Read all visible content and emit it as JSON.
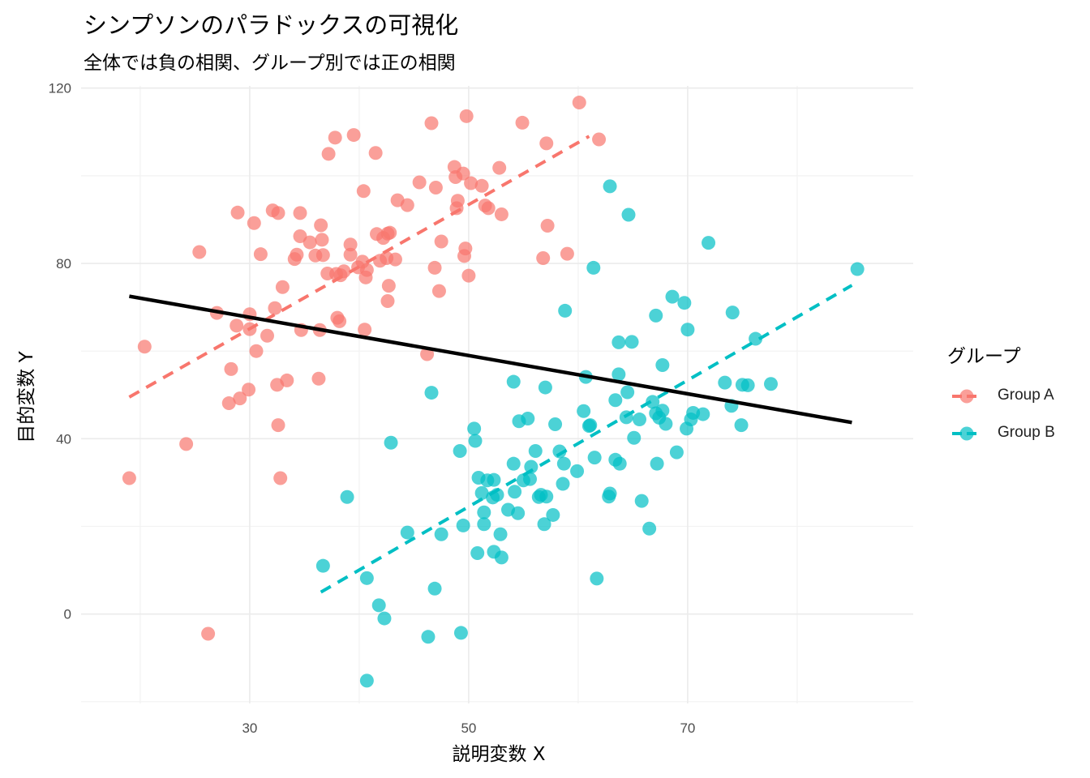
{
  "title": "シンプソンのパラドックスの可視化",
  "subtitle": "全体では負の相関、グループ別では正の相関",
  "chart_data": {
    "type": "scatter",
    "xlabel": "説明変数 X",
    "ylabel": "目的変数 Y",
    "xlim": [
      14.6,
      90.6
    ],
    "ylim": [
      -20.4,
      120.5
    ],
    "xticks": [
      30,
      50,
      70
    ],
    "yticks": [
      0,
      40,
      80,
      120
    ],
    "grid": true,
    "legend": {
      "title": "グループ",
      "position": "right"
    },
    "series": [
      {
        "name": "Group A",
        "color": "#F8766D",
        "trend": {
          "x": [
            19.0,
            61.0
          ],
          "y": [
            49.5,
            109.0
          ]
        },
        "points": [
          [
            19.0,
            31.0
          ],
          [
            20.4,
            61.0
          ],
          [
            24.2,
            38.8
          ],
          [
            25.4,
            82.6
          ],
          [
            26.2,
            -4.5
          ],
          [
            27.0,
            68.7
          ],
          [
            28.1,
            48.1
          ],
          [
            28.3,
            55.9
          ],
          [
            28.8,
            65.8
          ],
          [
            28.9,
            91.6
          ],
          [
            29.1,
            49.2
          ],
          [
            29.9,
            51.2
          ],
          [
            30.0,
            68.4
          ],
          [
            30.0,
            65.0
          ],
          [
            30.4,
            89.2
          ],
          [
            30.6,
            60.0
          ],
          [
            31.0,
            82.1
          ],
          [
            31.6,
            63.5
          ],
          [
            32.1,
            92.1
          ],
          [
            32.3,
            69.8
          ],
          [
            32.5,
            52.3
          ],
          [
            32.6,
            91.5
          ],
          [
            32.6,
            43.1
          ],
          [
            32.8,
            31.0
          ],
          [
            33.0,
            74.6
          ],
          [
            33.4,
            53.3
          ],
          [
            34.1,
            81.0
          ],
          [
            34.3,
            82.0
          ],
          [
            34.6,
            91.5
          ],
          [
            34.6,
            86.2
          ],
          [
            34.7,
            64.8
          ],
          [
            35.5,
            84.8
          ],
          [
            36.0,
            81.8
          ],
          [
            36.3,
            53.7
          ],
          [
            36.4,
            64.8
          ],
          [
            36.5,
            88.7
          ],
          [
            36.6,
            85.4
          ],
          [
            36.7,
            81.9
          ],
          [
            37.1,
            77.7
          ],
          [
            37.2,
            105.0
          ],
          [
            37.8,
            108.7
          ],
          [
            37.9,
            77.6
          ],
          [
            38.0,
            67.6
          ],
          [
            38.2,
            66.8
          ],
          [
            38.3,
            77.3
          ],
          [
            38.6,
            78.2
          ],
          [
            39.2,
            84.3
          ],
          [
            39.2,
            82.0
          ],
          [
            39.5,
            109.3
          ],
          [
            39.9,
            79.1
          ],
          [
            40.3,
            80.4
          ],
          [
            40.4,
            96.5
          ],
          [
            40.5,
            64.9
          ],
          [
            40.6,
            76.8
          ],
          [
            40.7,
            78.5
          ],
          [
            41.5,
            105.2
          ],
          [
            41.6,
            86.7
          ],
          [
            41.9,
            80.6
          ],
          [
            42.2,
            85.8
          ],
          [
            42.5,
            81.2
          ],
          [
            42.6,
            86.8
          ],
          [
            42.6,
            71.4
          ],
          [
            42.7,
            74.9
          ],
          [
            42.8,
            87.0
          ],
          [
            43.3,
            80.9
          ],
          [
            43.5,
            94.4
          ],
          [
            44.4,
            93.3
          ],
          [
            45.5,
            98.5
          ],
          [
            46.2,
            59.3
          ],
          [
            46.6,
            112.0
          ],
          [
            46.9,
            79.0
          ],
          [
            47.0,
            97.3
          ],
          [
            47.3,
            73.7
          ],
          [
            47.5,
            85.0
          ],
          [
            48.7,
            102.0
          ],
          [
            48.8,
            99.7
          ],
          [
            48.9,
            92.6
          ],
          [
            49.0,
            94.3
          ],
          [
            49.5,
            100.5
          ],
          [
            49.6,
            81.7
          ],
          [
            49.7,
            83.4
          ],
          [
            49.8,
            113.6
          ],
          [
            50.0,
            77.2
          ],
          [
            50.2,
            98.3
          ],
          [
            51.2,
            97.7
          ],
          [
            51.5,
            93.2
          ],
          [
            51.8,
            92.6
          ],
          [
            52.8,
            101.8
          ],
          [
            53.0,
            91.2
          ],
          [
            54.9,
            112.1
          ],
          [
            56.8,
            81.2
          ],
          [
            57.1,
            107.4
          ],
          [
            57.2,
            88.6
          ],
          [
            59.0,
            82.2
          ],
          [
            60.1,
            116.7
          ],
          [
            61.9,
            108.3
          ]
        ]
      },
      {
        "name": "Group B",
        "color": "#00BFC4",
        "trend": {
          "x": [
            36.5,
            85.0
          ],
          "y": [
            5.0,
            75.0
          ]
        },
        "points": [
          [
            36.7,
            11.0
          ],
          [
            38.9,
            26.7
          ],
          [
            40.7,
            8.2
          ],
          [
            40.7,
            -15.2
          ],
          [
            41.8,
            2.0
          ],
          [
            42.3,
            -1.0
          ],
          [
            42.9,
            39.1
          ],
          [
            44.4,
            18.6
          ],
          [
            46.3,
            -5.2
          ],
          [
            46.6,
            50.5
          ],
          [
            46.9,
            5.8
          ],
          [
            47.5,
            18.2
          ],
          [
            49.2,
            37.2
          ],
          [
            49.5,
            20.2
          ],
          [
            49.3,
            -4.3
          ],
          [
            50.5,
            42.3
          ],
          [
            50.6,
            39.5
          ],
          [
            50.9,
            31.1
          ],
          [
            50.8,
            13.9
          ],
          [
            51.2,
            27.6
          ],
          [
            51.4,
            23.2
          ],
          [
            51.4,
            20.5
          ],
          [
            51.7,
            30.5
          ],
          [
            52.2,
            26.6
          ],
          [
            52.3,
            14.2
          ],
          [
            52.3,
            30.6
          ],
          [
            52.6,
            27.2
          ],
          [
            52.9,
            18.2
          ],
          [
            53.0,
            12.9
          ],
          [
            53.6,
            23.8
          ],
          [
            54.1,
            53.0
          ],
          [
            54.1,
            34.3
          ],
          [
            54.2,
            27.9
          ],
          [
            54.5,
            23.0
          ],
          [
            54.6,
            44.0
          ],
          [
            55.0,
            30.5
          ],
          [
            55.4,
            44.6
          ],
          [
            55.6,
            30.8
          ],
          [
            55.7,
            33.6
          ],
          [
            56.1,
            37.2
          ],
          [
            56.4,
            26.7
          ],
          [
            56.6,
            27.2
          ],
          [
            56.9,
            20.5
          ],
          [
            57.0,
            51.7
          ],
          [
            57.1,
            26.8
          ],
          [
            57.7,
            22.6
          ],
          [
            57.9,
            43.3
          ],
          [
            58.3,
            37.1
          ],
          [
            58.6,
            29.7
          ],
          [
            58.7,
            34.3
          ],
          [
            58.8,
            69.2
          ],
          [
            59.9,
            32.6
          ],
          [
            60.5,
            46.3
          ],
          [
            60.7,
            54.1
          ],
          [
            61.0,
            42.9
          ],
          [
            61.1,
            43.1
          ],
          [
            61.4,
            79.0
          ],
          [
            61.5,
            35.7
          ],
          [
            61.7,
            8.1
          ],
          [
            62.9,
            97.6
          ],
          [
            62.8,
            26.8
          ],
          [
            62.9,
            27.5
          ],
          [
            63.4,
            48.8
          ],
          [
            63.4,
            35.2
          ],
          [
            63.7,
            62.0
          ],
          [
            63.7,
            54.7
          ],
          [
            63.8,
            34.3
          ],
          [
            64.4,
            44.9
          ],
          [
            64.6,
            91.1
          ],
          [
            64.5,
            50.6
          ],
          [
            64.9,
            62.1
          ],
          [
            65.1,
            40.2
          ],
          [
            65.6,
            44.4
          ],
          [
            65.8,
            25.8
          ],
          [
            66.5,
            19.5
          ],
          [
            66.8,
            48.4
          ],
          [
            67.1,
            45.8
          ],
          [
            67.1,
            68.1
          ],
          [
            67.2,
            34.3
          ],
          [
            67.4,
            44.8
          ],
          [
            67.7,
            46.4
          ],
          [
            67.7,
            56.8
          ],
          [
            68.0,
            43.4
          ],
          [
            68.6,
            72.4
          ],
          [
            69.0,
            36.9
          ],
          [
            69.7,
            71.0
          ],
          [
            69.9,
            42.3
          ],
          [
            70.0,
            64.9
          ],
          [
            70.3,
            44.4
          ],
          [
            70.5,
            45.9
          ],
          [
            71.4,
            45.6
          ],
          [
            71.9,
            84.7
          ],
          [
            73.4,
            52.8
          ],
          [
            74.0,
            47.5
          ],
          [
            74.1,
            68.8
          ],
          [
            74.9,
            43.1
          ],
          [
            75.0,
            52.3
          ],
          [
            76.2,
            62.8
          ],
          [
            75.5,
            52.2
          ],
          [
            77.6,
            52.5
          ],
          [
            85.5,
            78.7
          ]
        ]
      }
    ],
    "overall_trend": {
      "color": "#000000",
      "x": [
        19.0,
        85.0
      ],
      "y": [
        72.5,
        43.7
      ]
    }
  }
}
